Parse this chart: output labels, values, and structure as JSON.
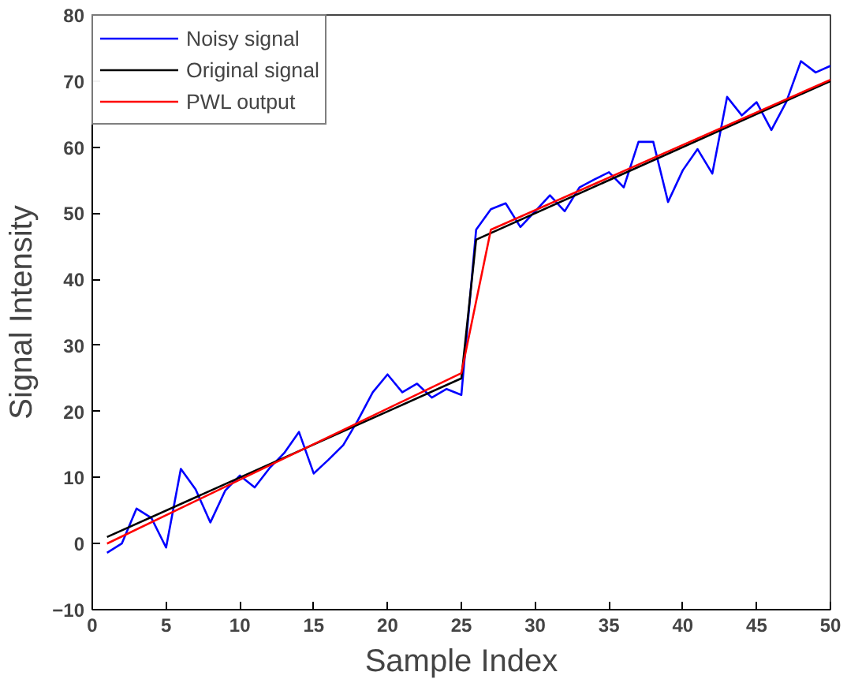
{
  "chart_data": {
    "type": "line",
    "xlabel": "Sample Index",
    "ylabel": "Signal Intensity",
    "xlim": [
      0,
      50
    ],
    "ylim": [
      -10,
      80
    ],
    "xticks": [
      0,
      5,
      10,
      15,
      20,
      25,
      30,
      35,
      40,
      45,
      50
    ],
    "yticks": [
      -10,
      0,
      10,
      20,
      30,
      40,
      50,
      60,
      70,
      80
    ],
    "grid": false,
    "legend": "top left",
    "line_style": "solid",
    "series": [
      {
        "name": "Noisy signal",
        "color": "#0000ff",
        "x": [
          1,
          2,
          3,
          4,
          5,
          6,
          7,
          8,
          9,
          10,
          11,
          12,
          13,
          14,
          15,
          16,
          17,
          18,
          19,
          20,
          21,
          22,
          23,
          24,
          25,
          26,
          27,
          28,
          29,
          30,
          31,
          32,
          33,
          34,
          35,
          36,
          37,
          38,
          39,
          40,
          41,
          42,
          43,
          44,
          45,
          46,
          47,
          48,
          49,
          50
        ],
        "values": [
          -1.4,
          0,
          5.3,
          3.9,
          -0.6,
          11.3,
          8.2,
          3.2,
          8,
          10.3,
          8.5,
          11.4,
          13.7,
          16.9,
          10.6,
          12.7,
          14.9,
          18.7,
          22.9,
          25.6,
          22.9,
          24.2,
          22.1,
          23.4,
          22.5,
          47.5,
          50.6,
          51.5,
          47.9,
          50.3,
          52.7,
          50.3,
          53.9,
          55.1,
          56.2,
          53.9,
          60.8,
          60.8,
          51.7,
          56.5,
          59.7,
          56,
          67.6,
          64.8,
          66.8,
          62.6,
          66.8,
          73,
          71.3,
          72.3
        ]
      },
      {
        "name": "Original signal",
        "color": "#000000",
        "x": [
          1,
          25,
          26,
          50
        ],
        "values": [
          1,
          25,
          46,
          70
        ]
      },
      {
        "name": "PWL output",
        "color": "#ff0000",
        "x": [
          1,
          25,
          27,
          50
        ],
        "values": [
          0,
          25.8,
          47.5,
          70.2
        ]
      }
    ]
  }
}
